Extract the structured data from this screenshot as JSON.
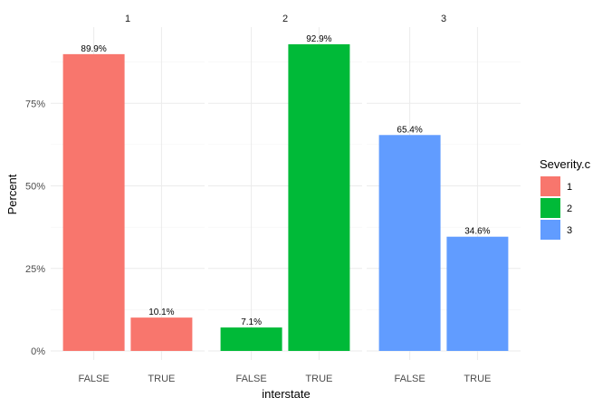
{
  "chart_data": {
    "type": "bar",
    "xlabel": "interstate",
    "ylabel": "Percent",
    "ylim": [
      0,
      100
    ],
    "y_ticks": [
      0,
      25,
      50,
      75
    ],
    "y_tick_labels": [
      "0%",
      "25%",
      "50%",
      "75%"
    ],
    "categories": [
      "FALSE",
      "TRUE"
    ],
    "grid": true,
    "legend": {
      "title": "Severity.c",
      "position": "right",
      "entries": [
        {
          "label": "1",
          "color": "#F8766D"
        },
        {
          "label": "2",
          "color": "#00BA38"
        },
        {
          "label": "3",
          "color": "#619CFF"
        }
      ]
    },
    "facets": [
      {
        "label": "1",
        "color": "#F8766D",
        "values": [
          89.9,
          10.1
        ],
        "value_labels": [
          "89.9%",
          "10.1%"
        ]
      },
      {
        "label": "2",
        "color": "#00BA38",
        "values": [
          7.1,
          92.9
        ],
        "value_labels": [
          "7.1%",
          "92.9%"
        ]
      },
      {
        "label": "3",
        "color": "#619CFF",
        "values": [
          65.4,
          34.6
        ],
        "value_labels": [
          "65.4%",
          "34.6%"
        ]
      }
    ]
  }
}
